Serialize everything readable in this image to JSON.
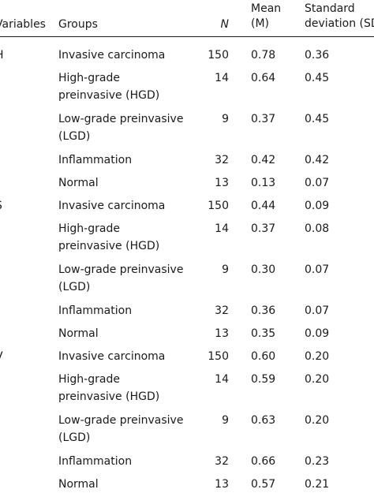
{
  "headers": {
    "variables": "Variables",
    "groups": "Groups",
    "n": "N",
    "mean_line1": "Mean",
    "mean_line2": "(M)",
    "sd_line1": "Standard",
    "sd_line2": "deviation (SD)"
  },
  "sections": [
    {
      "variable": "H",
      "rows": [
        {
          "group": "Invasive carcinoma",
          "n": "150",
          "mean": "0.78",
          "sd": "0.36"
        },
        {
          "group": "High-grade preinvasive (HGD)",
          "n": "14",
          "mean": "0.64",
          "sd": "0.45"
        },
        {
          "group": "Low-grade preinvasive (LGD)",
          "n": "9",
          "mean": "0.37",
          "sd": "0.45"
        },
        {
          "group": "Inflammation",
          "n": "32",
          "mean": "0.42",
          "sd": "0.42"
        },
        {
          "group": "Normal",
          "n": "13",
          "mean": "0.13",
          "sd": "0.07"
        }
      ]
    },
    {
      "variable": "S",
      "rows": [
        {
          "group": "Invasive carcinoma",
          "n": "150",
          "mean": "0.44",
          "sd": "0.09"
        },
        {
          "group": "High-grade preinvasive (HGD)",
          "n": "14",
          "mean": "0.37",
          "sd": "0.08"
        },
        {
          "group": "Low-grade preinvasive (LGD)",
          "n": "9",
          "mean": "0.30",
          "sd": "0.07"
        },
        {
          "group": "Inflammation",
          "n": "32",
          "mean": "0.36",
          "sd": "0.07"
        },
        {
          "group": "Normal",
          "n": "13",
          "mean": "0.35",
          "sd": "0.09"
        }
      ]
    },
    {
      "variable": "V",
      "rows": [
        {
          "group": "Invasive carcinoma",
          "n": "150",
          "mean": "0.60",
          "sd": "0.20"
        },
        {
          "group": "High-grade preinvasive (HGD)",
          "n": "14",
          "mean": "0.59",
          "sd": "0.20"
        },
        {
          "group": "Low-grade preinvasive (LGD)",
          "n": "9",
          "mean": "0.63",
          "sd": "0.20"
        },
        {
          "group": "Inflammation",
          "n": "32",
          "mean": "0.66",
          "sd": "0.23"
        },
        {
          "group": "Normal",
          "n": "13",
          "mean": "0.57",
          "sd": "0.21"
        }
      ]
    }
  ]
}
